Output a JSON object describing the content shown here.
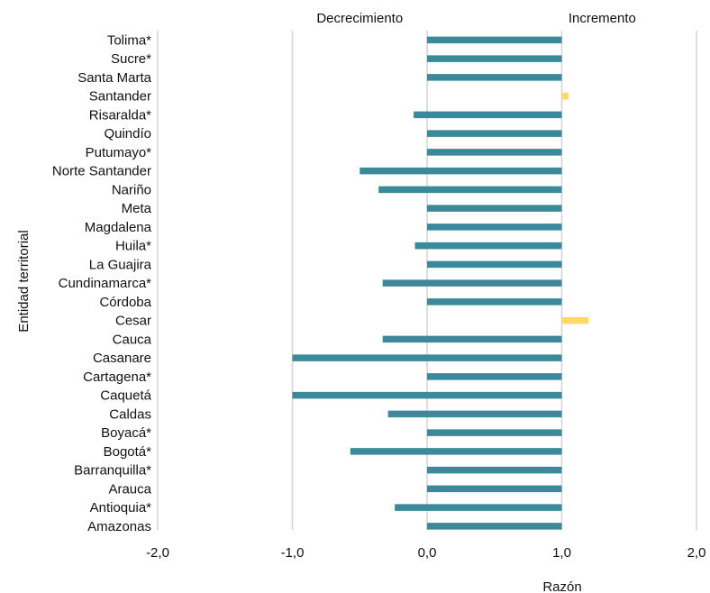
{
  "chart_data": {
    "type": "bar",
    "orientation": "horizontal",
    "title": "",
    "xlabel": "Razón",
    "ylabel": "Entidad territorial",
    "xlim": [
      -2.0,
      2.0
    ],
    "x_ticks": [
      "-2,0",
      "-1,0",
      "0,0",
      "1,0",
      "2,0"
    ],
    "x_tick_values": [
      -2,
      -1,
      0,
      1,
      2
    ],
    "grid": "vertical",
    "annotations": [
      {
        "text": "Decrecimiento",
        "x": -0.5
      },
      {
        "text": "Incremento",
        "x": 1.3
      }
    ],
    "baseline": 1.0,
    "colors": {
      "decrease": "#3a8a9b",
      "increase": "#ffd966",
      "grid": "#d4d4d4"
    },
    "categories": [
      "Tolima*",
      "Sucre*",
      "Santa Marta",
      "Santander",
      "Risaralda*",
      "Quindío",
      "Putumayo*",
      "Norte Santander",
      "Nariño",
      "Meta",
      "Magdalena",
      "Huila*",
      "La Guajira",
      "Cundinamarca*",
      "Córdoba",
      "Cesar",
      "Cauca",
      "Casanare",
      "Cartagena*",
      "Caquetá",
      "Caldas",
      "Boyacá*",
      "Bogotá*",
      "Barranquilla*",
      "Arauca",
      "Antioquia*",
      "Amazonas"
    ],
    "values": [
      0.0,
      0.0,
      0.0,
      1.05,
      -0.1,
      0.0,
      0.0,
      -0.5,
      -0.36,
      0.0,
      0.0,
      -0.09,
      0.0,
      -0.33,
      0.0,
      1.2,
      -0.33,
      -1.0,
      0.0,
      -1.0,
      -0.29,
      0.0,
      -0.57,
      0.0,
      0.0,
      -0.24,
      0.0
    ]
  }
}
